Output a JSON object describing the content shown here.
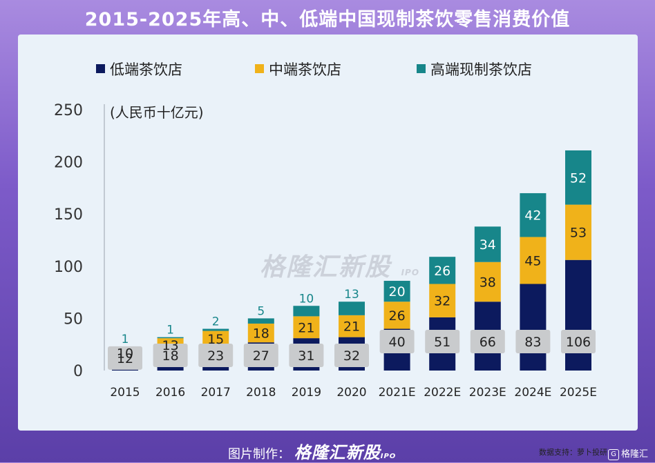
{
  "title": "2015-2025年高、中、低端中国现制茶饮零售消费价值",
  "watermark": {
    "brand": "格隆汇新股",
    "sub": "IPO"
  },
  "source": "数据支持：萝卜投研",
  "footer": {
    "prefix": "图片制作：",
    "brand": "格隆汇新股",
    "sub": "IPO",
    "logo_letter": "G",
    "logo_text": "格隆汇"
  },
  "chart_data": {
    "type": "bar",
    "stacked": true,
    "unit_label": "(人民币十亿元)",
    "categories": [
      "2015",
      "2016",
      "2017",
      "2018",
      "2019",
      "2020",
      "2021E",
      "2022E",
      "2023E",
      "2024E",
      "2025E"
    ],
    "series": [
      {
        "name": "低端茶饮店",
        "color": "#0c1a5e",
        "values": [
          12,
          18,
          23,
          27,
          31,
          32,
          40,
          51,
          66,
          83,
          106
        ]
      },
      {
        "name": "中端茶饮店",
        "color": "#f0b21a",
        "values": [
          10,
          13,
          15,
          18,
          21,
          21,
          26,
          32,
          38,
          45,
          53
        ]
      },
      {
        "name": "高端现制茶饮店",
        "color": "#17868a",
        "values": [
          1,
          1,
          2,
          5,
          10,
          13,
          20,
          26,
          34,
          42,
          52
        ]
      }
    ],
    "yticks": [
      0,
      50,
      100,
      150,
      200,
      250
    ],
    "ylim": [
      0,
      250
    ],
    "grid": false,
    "legend_position": "top"
  }
}
